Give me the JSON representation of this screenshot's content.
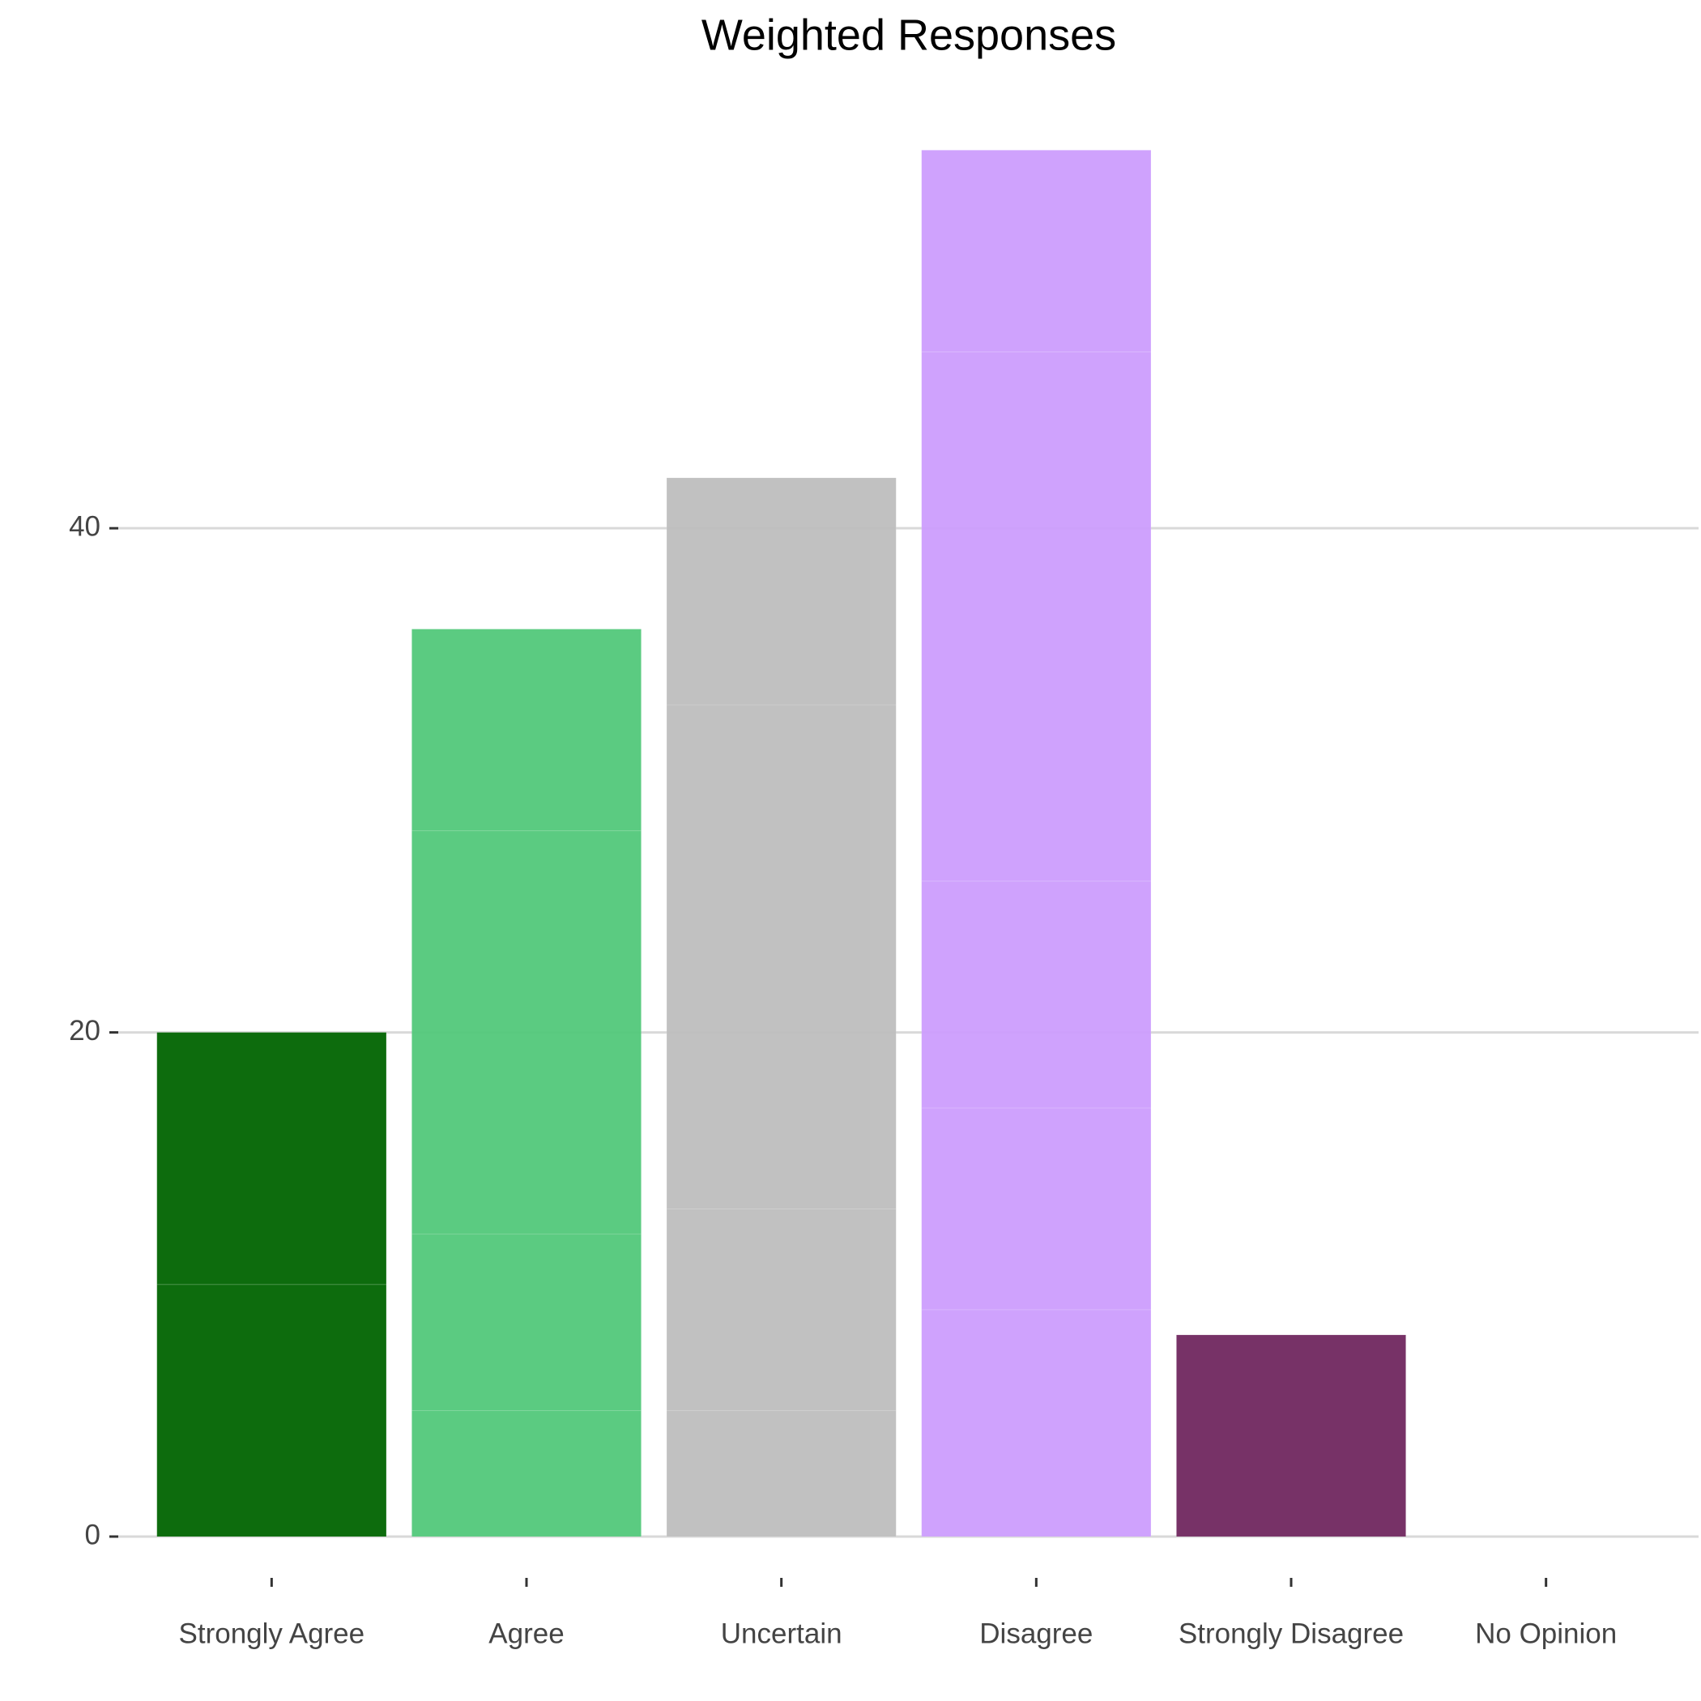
{
  "chart_data": {
    "type": "stacked-bar",
    "title": "Weighted Responses",
    "categories": [
      "Strongly Agree",
      "Agree",
      "Uncertain",
      "Disagree",
      "Strongly Disagree",
      "No Opinion"
    ],
    "colors": [
      "#006400",
      "#52c87a",
      "#bebebe",
      "#cc9dfd",
      "#70275f",
      "#888888"
    ],
    "segments": [
      [
        10,
        10
      ],
      [
        5,
        7,
        16,
        8
      ],
      [
        5,
        8,
        20,
        9
      ],
      [
        9,
        8,
        9,
        21,
        8
      ],
      [
        8
      ],
      []
    ],
    "ylim": [
      0,
      58
    ],
    "yticks": [
      0,
      20,
      40
    ],
    "grid": true
  }
}
